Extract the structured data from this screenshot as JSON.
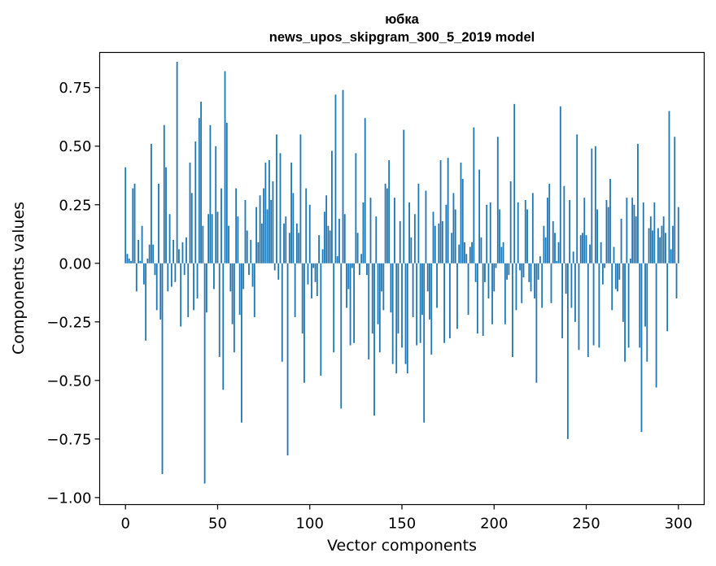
{
  "chart_data": {
    "type": "bar",
    "title": "юбка",
    "subtitle": "news_upos_skipgram_300_5_2019 model",
    "xlabel": "Vector components",
    "ylabel": "Components values",
    "xlim": [
      -14,
      314
    ],
    "ylim": [
      -1.03,
      0.9
    ],
    "xticks": [
      0,
      50,
      100,
      150,
      200,
      250,
      300
    ],
    "yticks": [
      -1.0,
      -0.75,
      -0.5,
      -0.25,
      0.0,
      0.25,
      0.5,
      0.75
    ],
    "xtick_labels": [
      "0",
      "50",
      "100",
      "150",
      "200",
      "250",
      "300"
    ],
    "ytick_labels": [
      "−1.00",
      "−0.75",
      "−0.50",
      "−0.25",
      "0.00",
      "0.25",
      "0.50",
      "0.75"
    ],
    "color": "#1f77b4",
    "values": [
      0.41,
      0.04,
      0.02,
      0.01,
      0.32,
      0.34,
      -0.12,
      0.1,
      0.01,
      0.16,
      -0.09,
      -0.33,
      0.02,
      0.08,
      0.51,
      0.08,
      -0.05,
      -0.2,
      0.34,
      -0.24,
      -0.9,
      0.59,
      0.41,
      -0.12,
      0.21,
      -0.1,
      0.1,
      -0.08,
      0.86,
      0.06,
      -0.27,
      0.09,
      -0.05,
      0.11,
      -0.23,
      0.43,
      0.3,
      -0.2,
      0.52,
      -0.15,
      0.62,
      0.69,
      0.16,
      -0.94,
      -0.21,
      0.21,
      0.59,
      0.21,
      -0.11,
      0.5,
      0.22,
      -0.4,
      0.32,
      -0.54,
      0.82,
      0.6,
      0.16,
      -0.12,
      -0.26,
      -0.38,
      0.32,
      0.2,
      -0.22,
      -0.68,
      -0.11,
      0.27,
      0.14,
      -0.05,
      0.1,
      -0.1,
      -0.23,
      0.24,
      0.09,
      0.29,
      0.17,
      0.32,
      0.43,
      0.23,
      0.44,
      0.27,
      0.35,
      -0.03,
      0.55,
      -0.07,
      0.47,
      -0.42,
      0.17,
      0.2,
      -0.82,
      0.13,
      0.43,
      0.3,
      -0.23,
      0.17,
      0.13,
      0.55,
      -0.3,
      -0.51,
      0.32,
      -0.09,
      0.25,
      -0.15,
      -0.02,
      -0.08,
      -0.14,
      0.12,
      -0.48,
      0.06,
      0.22,
      0.29,
      0.16,
      0.14,
      0.48,
      -0.38,
      0.72,
      0.03,
      0.19,
      -0.62,
      0.74,
      0.21,
      -0.19,
      -0.11,
      -0.35,
      -0.02,
      -0.34,
      0.47,
      0.13,
      -0.05,
      0.04,
      0.26,
      0.62,
      -0.05,
      -0.41,
      0.28,
      -0.3,
      -0.65,
      0.2,
      -0.26,
      -0.38,
      -0.12,
      -0.2,
      0.34,
      0.32,
      0.44,
      -0.21,
      -0.43,
      0.28,
      -0.47,
      -0.3,
      0.18,
      -0.36,
      0.57,
      -0.43,
      -0.47,
      0.26,
      0.11,
      -0.23,
      0.21,
      -0.35,
      0.34,
      -0.34,
      -0.22,
      -0.68,
      0.31,
      -0.12,
      -0.24,
      -0.39,
      0.22,
      0.16,
      -0.19,
      0.17,
      0.44,
      0.18,
      -0.34,
      0.25,
      0.45,
      -0.32,
      0.13,
      0.3,
      0.23,
      -0.28,
      0.08,
      0.43,
      0.36,
      0.09,
      0.04,
      -0.22,
      0.07,
      0.09,
      0.58,
      -0.08,
      -0.3,
      0.4,
      0.11,
      -0.31,
      -0.08,
      0.25,
      -0.15,
      0.26,
      -0.26,
      -0.12,
      -0.02,
      0.54,
      0.23,
      0.07,
      0.09,
      -0.26,
      -0.07,
      -0.05,
      0.35,
      -0.4,
      0.68,
      -0.2,
      0.26,
      -0.03,
      -0.17,
      -0.06,
      0.27,
      0.23,
      -0.08,
      -0.12,
      0.3,
      -0.15,
      -0.51,
      -0.07,
      0.03,
      -0.19,
      0.16,
      0.11,
      0.28,
      0.34,
      -0.17,
      0.18,
      0.13,
      0.01,
      0.09,
      0.67,
      -0.32,
      0.33,
      -0.13,
      -0.75,
      0.27,
      -0.19,
      0.05,
      -0.25,
      0.55,
      -0.37,
      0.12,
      0.13,
      0.28,
      0.12,
      -0.4,
      0.08,
      0.49,
      -0.35,
      0.5,
      0.23,
      -0.36,
      0.09,
      -0.09,
      -0.02,
      0.27,
      0.24,
      0.36,
      -0.2,
      0.07,
      -0.11,
      -0.12,
      -0.07,
      0.19,
      -0.25,
      -0.42,
      0.28,
      -0.36,
      0.02,
      0.28,
      0.25,
      0.2,
      0.51,
      -0.36,
      -0.72,
      0.26,
      -0.27,
      -0.42,
      0.15,
      0.2,
      0.14,
      0.26,
      -0.53,
      0.15,
      0.11,
      0.16,
      0.2,
      0.13,
      -0.29,
      0.65,
      0.06,
      0.16,
      0.54,
      -0.15,
      0.24
    ]
  }
}
